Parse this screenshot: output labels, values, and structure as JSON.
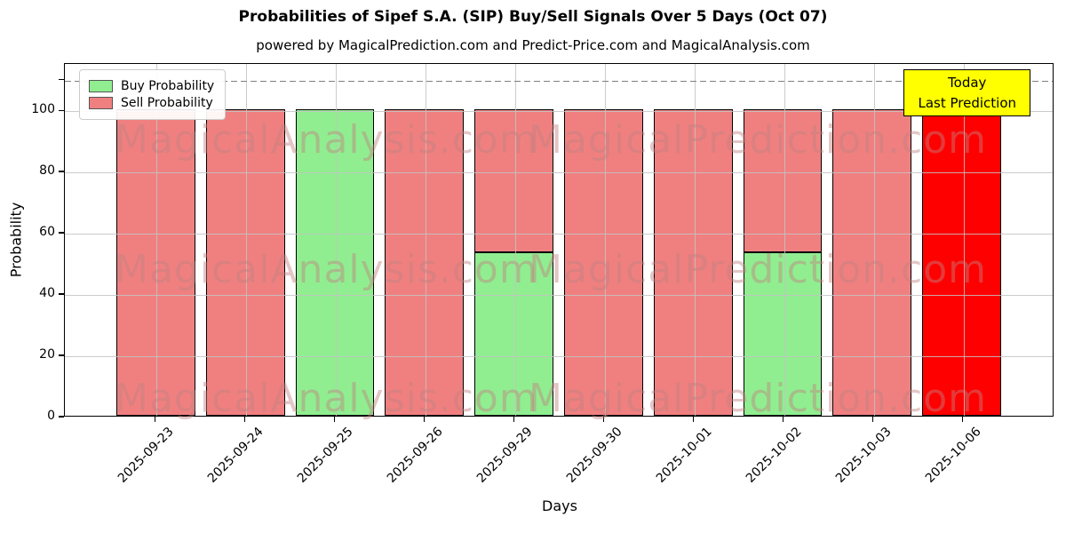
{
  "chart_data": {
    "type": "bar",
    "stacked": true,
    "title": "Probabilities of Sipef S.A. (SIP) Buy/Sell Signals Over 5 Days (Oct 07)",
    "subtitle": "powered by MagicalPrediction.com and Predict-Price.com and MagicalAnalysis.com",
    "xlabel": "Days",
    "ylabel": "Probability",
    "ylim": [
      0,
      115.4
    ],
    "yticks": [
      0,
      20,
      40,
      60,
      80,
      100
    ],
    "extra_unlabeled_ytick": 110,
    "grid": true,
    "categories": [
      "2025-09-23",
      "2025-09-24",
      "2025-09-25",
      "2025-09-26",
      "2025-09-29",
      "2025-09-30",
      "2025-10-01",
      "2025-10-02",
      "2025-10-03",
      "2025-10-06"
    ],
    "series": [
      {
        "name": "Buy Probability",
        "color": "#90EE90",
        "values": [
          0,
          0,
          100,
          0,
          53.3,
          0,
          0,
          53.3,
          0,
          0
        ]
      },
      {
        "name": "Sell Probability",
        "color": "#F08080",
        "values": [
          100,
          100,
          0,
          100,
          46.7,
          100,
          100,
          46.7,
          100,
          100
        ]
      }
    ],
    "today_highlight": {
      "category": "2025-10-06",
      "index": 9,
      "color": "#FF0000"
    },
    "bar_edge_color": "#000000",
    "reference_line": {
      "y": 110,
      "style": "dashed",
      "color": "#7f7f7f"
    },
    "legend": {
      "position": "upper-left",
      "entries": [
        {
          "label": "Buy Probability",
          "color": "#90EE90"
        },
        {
          "label": "Sell Probability",
          "color": "#F08080"
        }
      ]
    },
    "annotation_box": {
      "lines": [
        "Today",
        "Last Prediction"
      ],
      "bg": "#FFFF00",
      "border": "#000000"
    },
    "watermarks": [
      "MagicalAnalysis.com",
      "MagicalPrediction.com"
    ]
  }
}
